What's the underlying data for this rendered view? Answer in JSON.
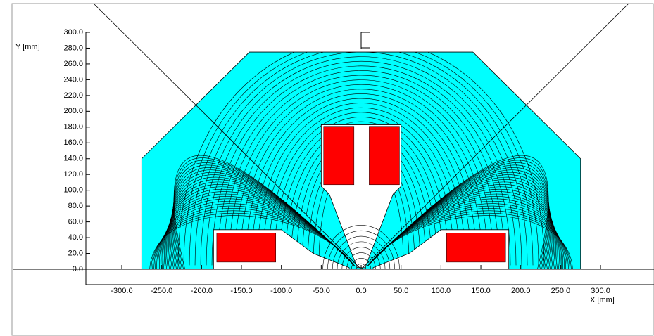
{
  "chart_data": {
    "type": "field",
    "x_label": "X [mm]",
    "y_label": "Y [mm]",
    "xlim": [
      -345,
      367
    ],
    "ylim": [
      0,
      300
    ],
    "xticks": [
      {
        "value": -300,
        "label": "-300.0"
      },
      {
        "value": -250,
        "label": "-250.0"
      },
      {
        "value": -200,
        "label": "-200.0"
      },
      {
        "value": -150,
        "label": "-150.0"
      },
      {
        "value": -100,
        "label": "-100.0"
      },
      {
        "value": -50,
        "label": "-50.0"
      },
      {
        "value": 0,
        "label": "0.0"
      },
      {
        "value": 50,
        "label": "50.0"
      },
      {
        "value": 100,
        "label": "100.0"
      },
      {
        "value": 150,
        "label": "150.0"
      },
      {
        "value": 200,
        "label": "200.0"
      },
      {
        "value": 250,
        "label": "250.0"
      },
      {
        "value": 300,
        "label": "300.0"
      }
    ],
    "yticks": [
      {
        "value": 0,
        "label": "0.0"
      },
      {
        "value": 20,
        "label": "20.0"
      },
      {
        "value": 40,
        "label": "40.0"
      },
      {
        "value": 60,
        "label": "60.0"
      },
      {
        "value": 80,
        "label": "80.0"
      },
      {
        "value": 100,
        "label": "100.0"
      },
      {
        "value": 120,
        "label": "120.0"
      },
      {
        "value": 140,
        "label": "140.0"
      },
      {
        "value": 160,
        "label": "160.0"
      },
      {
        "value": 180,
        "label": "180.0"
      },
      {
        "value": 200,
        "label": "200.0"
      },
      {
        "value": 220,
        "label": "220.0"
      },
      {
        "value": 240,
        "label": "240.0"
      },
      {
        "value": 260,
        "label": "260.0"
      },
      {
        "value": 280,
        "label": "280.0"
      },
      {
        "value": 300,
        "label": "300.0"
      }
    ],
    "iron": {
      "color": "#00ffff",
      "x": [
        -275,
        -275,
        -140,
        140,
        275,
        275
      ],
      "y": [
        0,
        140,
        275,
        275,
        140,
        0
      ]
    },
    "air": [
      {
        "x": [
          -185,
          -185,
          -100,
          -60,
          -15,
          -15
        ],
        "y": [
          0,
          50,
          50,
          20,
          2,
          0
        ]
      },
      {
        "x": [
          185,
          185,
          100,
          60,
          15,
          15
        ],
        "y": [
          0,
          50,
          50,
          20,
          2,
          0
        ]
      },
      {
        "x": [
          -50,
          -50,
          -40,
          -5,
          5,
          40,
          50,
          50
        ],
        "y": [
          183,
          105,
          95,
          2,
          2,
          95,
          105,
          183
        ]
      }
    ],
    "coil_color": "#ff0000",
    "coils": [
      {
        "x": [
          -47,
          -9
        ],
        "y": [
          107,
          181
        ]
      },
      {
        "x": [
          10,
          48
        ],
        "y": [
          107,
          181
        ]
      },
      {
        "x": [
          -181,
          -107
        ],
        "y": [
          9,
          46
        ]
      },
      {
        "x": [
          107,
          181
        ],
        "y": [
          9,
          46
        ]
      }
    ]
  }
}
